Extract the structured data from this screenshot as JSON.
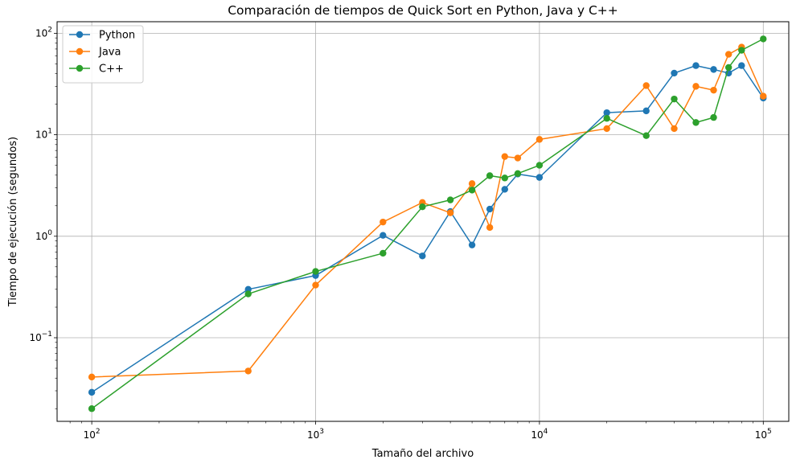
{
  "chart_data": {
    "type": "line",
    "title": "Comparación de tiempos de Quick Sort en Python, Java y C++",
    "xlabel": "Tamaño del archivo",
    "ylabel": "Tiempo de ejecución (segundos)",
    "xscale": "log",
    "yscale": "log",
    "xlim": [
      70,
      130000
    ],
    "ylim": [
      0.015,
      130
    ],
    "x_ticks": [
      {
        "value": 100,
        "label": "10^2"
      },
      {
        "value": 1000,
        "label": "10^3"
      },
      {
        "value": 10000,
        "label": "10^4"
      },
      {
        "value": 100000,
        "label": "10^5"
      }
    ],
    "y_ticks": [
      {
        "value": 0.1,
        "label": "10^-1"
      },
      {
        "value": 1,
        "label": "10^0"
      },
      {
        "value": 10,
        "label": "10^1"
      },
      {
        "value": 100,
        "label": "10^2"
      }
    ],
    "grid": true,
    "legend_position": "top-left",
    "x": [
      100,
      500,
      1000,
      2000,
      3000,
      4000,
      5000,
      6000,
      7000,
      8000,
      10000,
      20000,
      30000,
      40000,
      50000,
      60000,
      70000,
      80000,
      100000
    ],
    "series": [
      {
        "name": "Python",
        "color": "#1f77b4",
        "values": [
          0.029,
          0.3,
          0.41,
          1.02,
          0.64,
          1.75,
          0.82,
          1.85,
          2.9,
          4.1,
          3.8,
          16.5,
          17.2,
          40.5,
          48.0,
          44.0,
          40.5,
          48.0,
          23.0
        ]
      },
      {
        "name": "Java",
        "color": "#ff7f0e",
        "values": [
          0.041,
          0.047,
          0.33,
          1.38,
          2.15,
          1.7,
          3.3,
          1.22,
          6.1,
          5.9,
          9.0,
          11.5,
          30.5,
          11.5,
          30.0,
          27.5,
          62.0,
          73.0,
          24.0
        ]
      },
      {
        "name": "C++",
        "color": "#2ca02c",
        "values": [
          0.02,
          0.27,
          0.45,
          0.68,
          1.95,
          2.28,
          2.85,
          3.95,
          3.75,
          4.15,
          5.0,
          14.5,
          9.8,
          22.5,
          13.2,
          14.8,
          46.0,
          68.0,
          88.0
        ]
      }
    ]
  }
}
